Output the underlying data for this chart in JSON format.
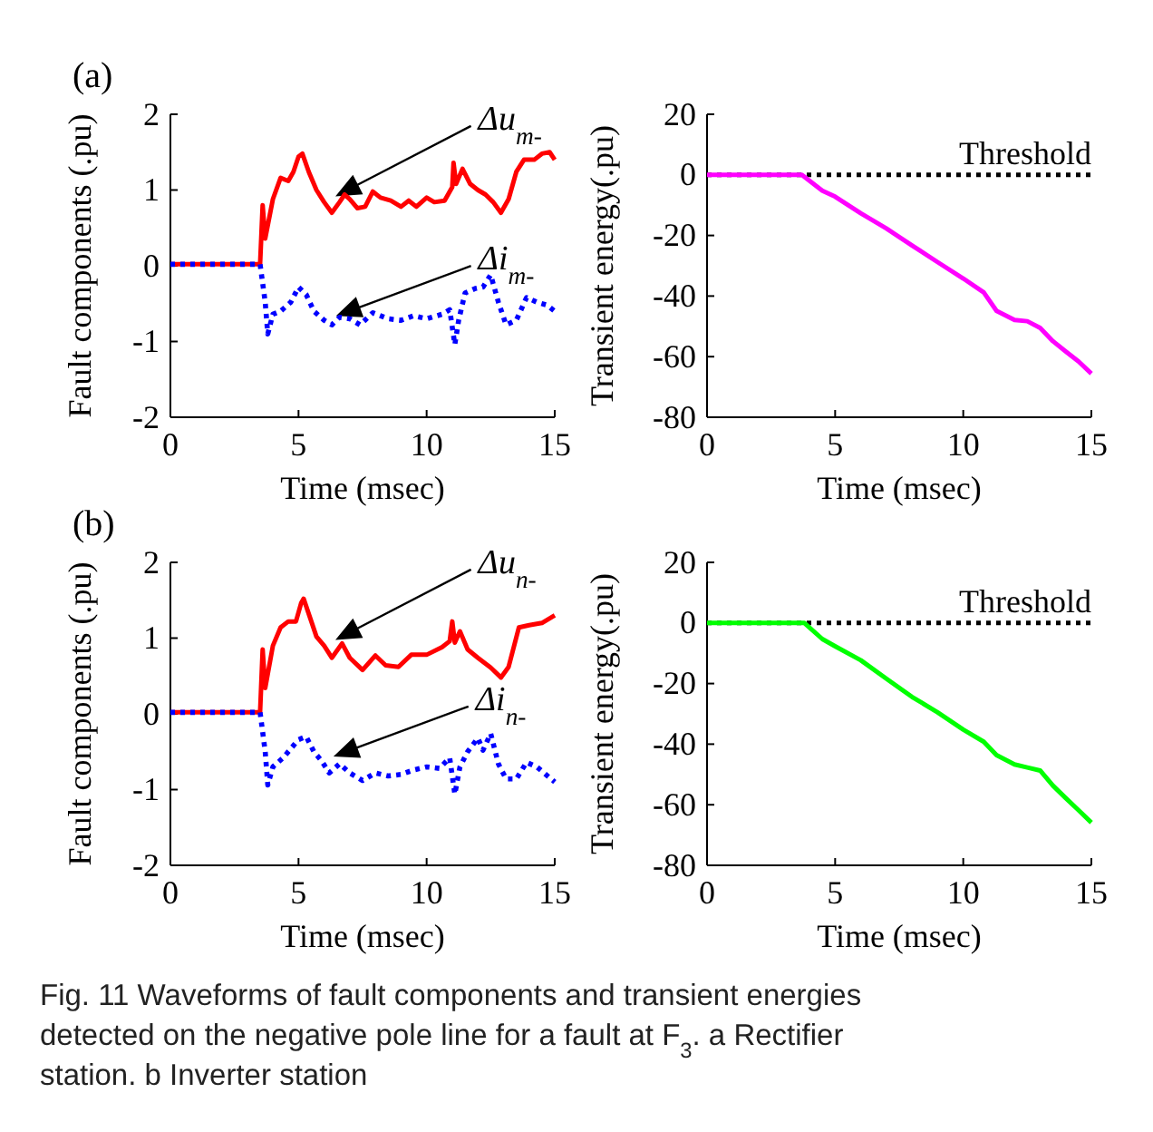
{
  "chart_data": [
    {
      "type": "line",
      "title": "(a)",
      "xlabel": "Time (msec)",
      "ylabel": "Fault components (.pu)",
      "xlim": [
        0,
        15
      ],
      "xticks": [
        0,
        5,
        10,
        15
      ],
      "ylim": [
        -2,
        2
      ],
      "yticks": [
        -2,
        -1,
        0,
        1,
        2
      ],
      "grid": false,
      "series": [
        {
          "name": "Δu$_{m-}$",
          "color": "#ff0000",
          "line_style": "solid",
          "x": [
            0,
            3.5,
            3.6,
            3.7,
            4.0,
            4.3,
            4.6,
            4.8,
            5.0,
            5.15,
            5.4,
            5.7,
            6.0,
            6.3,
            6.6,
            6.8,
            7.0,
            7.3,
            7.6,
            7.9,
            8.2,
            8.6,
            9.0,
            9.3,
            9.6,
            10.0,
            10.3,
            10.7,
            11.0,
            11.05,
            11.15,
            11.4,
            11.7,
            12.0,
            12.3,
            12.6,
            12.9,
            13.2,
            13.5,
            13.8,
            14.2,
            14.5,
            14.8,
            15
          ],
          "values": [
            0.02,
            0.02,
            0.8,
            0.36,
            0.88,
            1.16,
            1.12,
            1.24,
            1.44,
            1.48,
            1.24,
            1.0,
            0.84,
            0.7,
            0.84,
            0.94,
            0.88,
            0.76,
            0.78,
            0.98,
            0.9,
            0.86,
            0.78,
            0.86,
            0.78,
            0.9,
            0.84,
            0.86,
            1.04,
            1.36,
            1.08,
            1.28,
            1.08,
            1.0,
            0.94,
            0.84,
            0.7,
            0.88,
            1.24,
            1.4,
            1.4,
            1.48,
            1.5,
            1.4
          ]
        },
        {
          "name": "Δi$_{m-}$",
          "color": "#0000ff",
          "line_style": "dotted",
          "x": [
            0,
            3.5,
            3.7,
            3.8,
            4.0,
            4.3,
            4.7,
            5.0,
            5.3,
            5.6,
            6.0,
            6.3,
            6.6,
            7.0,
            7.4,
            7.9,
            8.5,
            9.0,
            9.5,
            10.0,
            10.6,
            10.9,
            11.1,
            11.25,
            11.5,
            11.9,
            12.2,
            12.5,
            12.8,
            13.1,
            13.5,
            13.9,
            14.3,
            14.7,
            15
          ],
          "values": [
            0.02,
            0.02,
            -0.48,
            -0.9,
            -0.64,
            -0.6,
            -0.48,
            -0.28,
            -0.38,
            -0.6,
            -0.72,
            -0.78,
            -0.68,
            -0.7,
            -0.78,
            -0.62,
            -0.7,
            -0.72,
            -0.66,
            -0.7,
            -0.64,
            -0.58,
            -1.04,
            -0.72,
            -0.36,
            -0.3,
            -0.28,
            -0.12,
            -0.48,
            -0.78,
            -0.72,
            -0.42,
            -0.48,
            -0.52,
            -0.6
          ]
        }
      ]
    },
    {
      "type": "line",
      "xlabel": "Time (msec)",
      "ylabel": "Transient energy(.pu)",
      "xlim": [
        0,
        15
      ],
      "xticks": [
        0,
        5,
        10,
        15
      ],
      "ylim": [
        -80,
        20
      ],
      "yticks": [
        -80,
        -60,
        -40,
        -20,
        0,
        20
      ],
      "grid": false,
      "series": [
        {
          "color": "#ff00ff",
          "line_style": "solid",
          "x": [
            0,
            3.7,
            4.5,
            5,
            6,
            7,
            8,
            9,
            10,
            10.8,
            11.3,
            12,
            12.5,
            13,
            13.5,
            14,
            14.5,
            15
          ],
          "values": [
            0,
            0,
            -5.2,
            -7.2,
            -12.7,
            -17.7,
            -23.3,
            -28.8,
            -34.2,
            -38.8,
            -44.9,
            -47.9,
            -48.3,
            -50.5,
            -54.9,
            -58.3,
            -61.6,
            -65.6
          ]
        }
      ],
      "ref_lines": [
        {
          "axis": "y",
          "value": 0,
          "label": "Threshold",
          "color": "#000000",
          "line_style": "dotted"
        }
      ]
    },
    {
      "type": "line",
      "title": "(b)",
      "xlabel": "Time (msec)",
      "ylabel": "Fault components (.pu)",
      "xlim": [
        0,
        15
      ],
      "xticks": [
        0,
        5,
        10,
        15
      ],
      "ylim": [
        -2,
        2
      ],
      "yticks": [
        -2,
        -1,
        0,
        1,
        2
      ],
      "grid": false,
      "series": [
        {
          "name": "Δu$_{n-}$",
          "color": "#ff0000",
          "line_style": "solid",
          "x": [
            0,
            3.5,
            3.6,
            3.7,
            4.0,
            4.3,
            4.6,
            4.9,
            5.1,
            5.2,
            5.5,
            5.7,
            6.0,
            6.3,
            6.7,
            7.0,
            7.5,
            8.0,
            8.4,
            8.9,
            9.4,
            10.0,
            10.6,
            10.9,
            11.0,
            11.1,
            11.3,
            11.6,
            12.0,
            12.5,
            12.9,
            13.2,
            13.6,
            14.0,
            14.5,
            15
          ],
          "values": [
            0.02,
            0.02,
            0.85,
            0.34,
            0.9,
            1.14,
            1.22,
            1.22,
            1.46,
            1.52,
            1.22,
            1.02,
            0.9,
            0.74,
            0.93,
            0.74,
            0.58,
            0.77,
            0.64,
            0.62,
            0.78,
            0.78,
            0.88,
            0.96,
            1.22,
            0.94,
            1.09,
            0.85,
            0.74,
            0.61,
            0.48,
            0.62,
            1.14,
            1.17,
            1.2,
            1.3
          ]
        },
        {
          "name": "Δi$_{n-}$",
          "color": "#0000ff",
          "line_style": "dotted",
          "x": [
            0,
            3.5,
            3.7,
            3.8,
            4.0,
            4.4,
            4.7,
            5.0,
            5.3,
            5.6,
            5.9,
            6.2,
            6.6,
            7.0,
            7.5,
            8.0,
            8.5,
            9.0,
            9.5,
            10.0,
            10.5,
            10.9,
            11.1,
            11.3,
            11.6,
            12.0,
            12.2,
            12.5,
            12.8,
            13.1,
            13.5,
            13.9,
            14.3,
            15
          ],
          "values": [
            0.02,
            0.02,
            -0.5,
            -0.94,
            -0.7,
            -0.58,
            -0.46,
            -0.34,
            -0.3,
            -0.5,
            -0.62,
            -0.78,
            -0.66,
            -0.78,
            -0.88,
            -0.78,
            -0.82,
            -0.8,
            -0.74,
            -0.7,
            -0.72,
            -0.58,
            -1.06,
            -0.7,
            -0.5,
            -0.32,
            -0.48,
            -0.26,
            -0.66,
            -0.86,
            -0.86,
            -0.64,
            -0.7,
            -0.9
          ]
        }
      ]
    },
    {
      "type": "line",
      "xlabel": "Time (msec)",
      "ylabel": "Transient energy(.pu)",
      "xlim": [
        0,
        15
      ],
      "xticks": [
        0,
        5,
        10,
        15
      ],
      "ylim": [
        -80,
        20
      ],
      "yticks": [
        -80,
        -60,
        -40,
        -20,
        0,
        20
      ],
      "grid": false,
      "series": [
        {
          "color": "#00ff00",
          "line_style": "solid",
          "x": [
            0,
            3.8,
            4.5,
            5,
            6,
            7,
            8,
            9,
            10,
            10.8,
            11.3,
            12,
            12.5,
            13,
            13.5,
            14,
            14.5,
            15
          ],
          "values": [
            0,
            0,
            -5.3,
            -7.7,
            -12.3,
            -18.4,
            -24.4,
            -29.5,
            -35.2,
            -39.2,
            -43.6,
            -46.7,
            -47.7,
            -48.7,
            -53.7,
            -57.8,
            -61.8,
            -65.9
          ]
        }
      ],
      "ref_lines": [
        {
          "axis": "y",
          "value": 0,
          "label": "Threshold",
          "color": "#000000",
          "line_style": "dotted"
        }
      ],
      "annotations": [
        "Fig. 11 Waveforms of fault components and transient energies detected on the negative pole line for a fault at F$_{3}$. a Rectifier station. b Inverter station"
      ]
    }
  ]
}
